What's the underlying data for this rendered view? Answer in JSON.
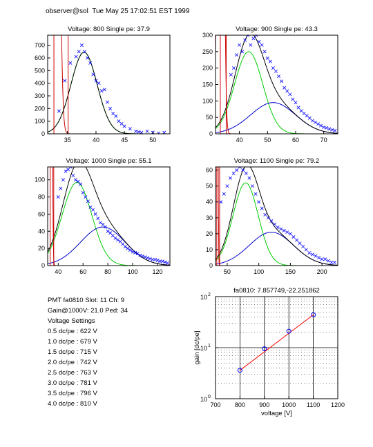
{
  "header": "observer@sol  Tue May 25 17:02:51 EST 1999",
  "info": {
    "pmt_line": "PMT fa0810 Slot: 11 Ch: 9",
    "gain_line": "Gain@1000V: 21.0 Ped: 34",
    "settings_title": "Voltage Settings",
    "settings": [
      "0.5 dc/pe : 622 V",
      "1.0 dc/pe : 679 V",
      "1.5 dc/pe : 715 V",
      "2.0 dc/pe : 742 V",
      "2.5 dc/pe : 763 V",
      "3.0 dc/pe : 781 V",
      "3.5 dc/pe : 796 V",
      "4.0 dc/pe : 810 V"
    ]
  },
  "colors": {
    "data": "#0000ff",
    "total": "#000000",
    "pedestal": "#cc0000",
    "single_pe": "#00cc00",
    "multi_pe": "#0000cc",
    "fit": "#ff0000"
  },
  "chart_data": [
    {
      "type": "scatter",
      "title": "Voltage: 800 Single pe: 37.9",
      "xlim": [
        31.5,
        53
      ],
      "ylim": [
        0,
        780
      ],
      "xticks": [
        35,
        40,
        45,
        50
      ],
      "yticks": [
        0,
        100,
        200,
        300,
        400,
        500,
        600,
        700
      ],
      "pedestal": {
        "center": 32.6,
        "sigma": 0.6,
        "amp": 10000,
        "lines": [
          32.6,
          35.1
        ]
      },
      "single_pe": {
        "center": 37.9,
        "sigma": 2.3,
        "amp": 645
      },
      "multi_pe": null,
      "data": [
        [
          33.5,
          180
        ],
        [
          34.5,
          420
        ],
        [
          35.5,
          560
        ],
        [
          36.5,
          610
        ],
        [
          37,
          650
        ],
        [
          37.5,
          700
        ],
        [
          38,
          650
        ],
        [
          38.5,
          600
        ],
        [
          39,
          560
        ],
        [
          39.5,
          470
        ],
        [
          40,
          420
        ],
        [
          40.5,
          400
        ],
        [
          41,
          340
        ],
        [
          41.5,
          350
        ],
        [
          42,
          250
        ],
        [
          42.5,
          200
        ],
        [
          43,
          160
        ],
        [
          43.5,
          140
        ],
        [
          44,
          100
        ],
        [
          44.5,
          80
        ],
        [
          45,
          60
        ],
        [
          46,
          40
        ],
        [
          47,
          20
        ],
        [
          47.5,
          15
        ],
        [
          48,
          10
        ],
        [
          49,
          20
        ],
        [
          50,
          10
        ],
        [
          51,
          5
        ],
        [
          52,
          10
        ]
      ]
    },
    {
      "type": "scatter",
      "title": "Voltage: 900 Single pe: 43.3",
      "xlim": [
        31.5,
        75
      ],
      "ylim": [
        0,
        300
      ],
      "xticks": [
        40,
        50,
        60,
        70
      ],
      "yticks": [
        0,
        50,
        100,
        150,
        200,
        250,
        300
      ],
      "pedestal": {
        "center": 33.3,
        "sigma": 0.8,
        "amp": 3000,
        "lines": [
          33.2,
          35.3
        ]
      },
      "single_pe": {
        "center": 43.3,
        "sigma": 5,
        "amp": 250
      },
      "multi_pe": {
        "center": 52,
        "sigma": 8,
        "amp": 95
      },
      "data": [
        [
          37,
          180
        ],
        [
          38,
          200
        ],
        [
          39,
          240
        ],
        [
          40,
          270
        ],
        [
          41,
          250
        ],
        [
          42,
          285
        ],
        [
          43,
          300
        ],
        [
          44,
          270
        ],
        [
          45,
          290
        ],
        [
          46,
          300
        ],
        [
          47,
          280
        ],
        [
          48,
          270
        ],
        [
          49,
          250
        ],
        [
          50,
          230
        ],
        [
          51,
          220
        ],
        [
          52,
          200
        ],
        [
          53,
          190
        ],
        [
          54,
          175
        ],
        [
          55,
          160
        ],
        [
          56,
          140
        ],
        [
          57,
          130
        ],
        [
          58,
          120
        ],
        [
          59,
          105
        ],
        [
          60,
          95
        ],
        [
          61,
          80
        ],
        [
          62,
          70
        ],
        [
          63,
          62
        ],
        [
          64,
          55
        ],
        [
          65,
          48
        ],
        [
          66,
          40
        ],
        [
          67,
          35
        ],
        [
          68,
          30
        ],
        [
          69,
          25
        ],
        [
          70,
          20
        ],
        [
          71,
          18
        ],
        [
          72,
          15
        ],
        [
          73,
          12
        ],
        [
          74,
          10
        ]
      ]
    },
    {
      "type": "scatter",
      "title": "Voltage: 1000 Single pe: 55.1",
      "xlim": [
        31.5,
        130
      ],
      "ylim": [
        0,
        115
      ],
      "xticks": [
        40,
        60,
        80,
        100,
        120
      ],
      "yticks": [
        0,
        20,
        40,
        60,
        80,
        100
      ],
      "pedestal": {
        "center": 33.5,
        "sigma": 0.9,
        "amp": 1500,
        "lines": [
          33.5,
          36.4
        ]
      },
      "single_pe": {
        "center": 55.1,
        "sigma": 12,
        "amp": 97
      },
      "multi_pe": {
        "center": 76,
        "sigma": 18,
        "amp": 45
      },
      "data": [
        [
          40,
          80
        ],
        [
          42,
          90
        ],
        [
          44,
          100
        ],
        [
          46,
          110
        ],
        [
          48,
          112
        ],
        [
          50,
          115
        ],
        [
          52,
          105
        ],
        [
          54,
          100
        ],
        [
          56,
          98
        ],
        [
          58,
          95
        ],
        [
          60,
          85
        ],
        [
          62,
          80
        ],
        [
          64,
          75
        ],
        [
          66,
          68
        ],
        [
          68,
          65
        ],
        [
          70,
          60
        ],
        [
          72,
          55
        ],
        [
          74,
          50
        ],
        [
          76,
          48
        ],
        [
          78,
          45
        ],
        [
          80,
          40
        ],
        [
          82,
          38
        ],
        [
          84,
          35
        ],
        [
          86,
          32
        ],
        [
          88,
          30
        ],
        [
          90,
          28
        ],
        [
          92,
          25
        ],
        [
          94,
          22
        ],
        [
          96,
          20
        ],
        [
          98,
          18
        ],
        [
          100,
          16
        ],
        [
          102,
          15
        ],
        [
          104,
          14
        ],
        [
          106,
          12
        ],
        [
          108,
          11
        ],
        [
          110,
          10
        ],
        [
          112,
          9
        ],
        [
          114,
          8
        ],
        [
          116,
          7
        ],
        [
          118,
          7
        ],
        [
          120,
          6
        ],
        [
          122,
          5
        ],
        [
          124,
          5
        ],
        [
          126,
          4
        ],
        [
          128,
          3
        ]
      ]
    },
    {
      "type": "scatter",
      "title": "Voltage: 1100 Single pe: 79.2",
      "xlim": [
        31.5,
        225
      ],
      "ylim": [
        0,
        62
      ],
      "xticks": [
        50,
        100,
        150,
        200
      ],
      "yticks": [
        0,
        10,
        20,
        30,
        40,
        50,
        60
      ],
      "pedestal": {
        "center": 33.5,
        "sigma": 1,
        "amp": 900,
        "lines": [
          33.5,
          38
        ]
      },
      "single_pe": {
        "center": 79.2,
        "sigma": 20,
        "amp": 52
      },
      "multi_pe": {
        "center": 120,
        "sigma": 35,
        "amp": 21
      },
      "data": [
        [
          40,
          40
        ],
        [
          45,
          45
        ],
        [
          50,
          50
        ],
        [
          55,
          55
        ],
        [
          60,
          58
        ],
        [
          65,
          60
        ],
        [
          70,
          62
        ],
        [
          75,
          60
        ],
        [
          80,
          58
        ],
        [
          85,
          55
        ],
        [
          90,
          50
        ],
        [
          95,
          45
        ],
        [
          100,
          40
        ],
        [
          105,
          36
        ],
        [
          110,
          32
        ],
        [
          115,
          30
        ],
        [
          120,
          28
        ],
        [
          125,
          26
        ],
        [
          130,
          24
        ],
        [
          135,
          23
        ],
        [
          140,
          22
        ],
        [
          145,
          21
        ],
        [
          150,
          20
        ],
        [
          155,
          18
        ],
        [
          160,
          16
        ],
        [
          165,
          14
        ],
        [
          170,
          12
        ],
        [
          175,
          10
        ],
        [
          180,
          8
        ],
        [
          185,
          7
        ],
        [
          190,
          6
        ],
        [
          195,
          5
        ],
        [
          200,
          4
        ],
        [
          205,
          4
        ],
        [
          210,
          3
        ],
        [
          215,
          2
        ],
        [
          220,
          2
        ]
      ]
    },
    {
      "type": "scatter",
      "title": "fa0810: 7.857749,-22.251862",
      "xlabel": "voltage [V]",
      "ylabel": "gain [dc/pe]",
      "log_y": true,
      "xlim": [
        700,
        1200
      ],
      "ylim": [
        1,
        100
      ],
      "xticks": [
        700,
        800,
        900,
        1000,
        1100,
        1200
      ],
      "yticks": [
        {
          "value": 1,
          "base": "10",
          "exp": "0"
        },
        {
          "value": 10,
          "base": "10",
          "exp": "1"
        },
        {
          "value": 100,
          "base": "10",
          "exp": "2"
        }
      ],
      "grid": true,
      "x": [
        800,
        900,
        1000,
        1100
      ],
      "y": [
        3.6,
        9.5,
        21,
        44
      ],
      "fit": {
        "x": [
          800,
          1100
        ],
        "y": [
          3.6,
          44
        ]
      }
    }
  ]
}
